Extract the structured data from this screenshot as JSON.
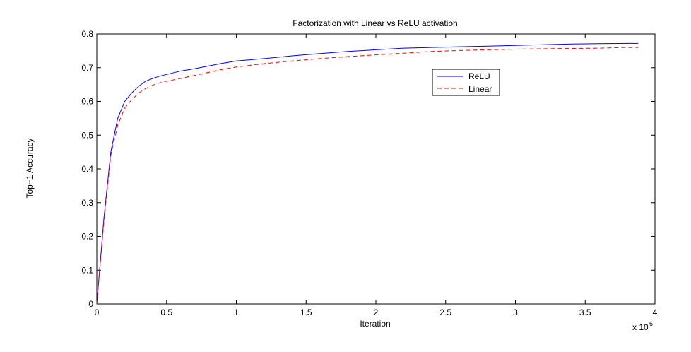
{
  "chart_data": {
    "type": "line",
    "title": "Factorization with Linear vs ReLU activation",
    "xlabel": "Iteration",
    "ylabel": "Top−1 Accuracy",
    "x_multiplier_label": "x 10",
    "x_multiplier_exponent": "6",
    "xlim": [
      0,
      4
    ],
    "ylim": [
      0,
      0.8
    ],
    "xticks": [
      0,
      0.5,
      1,
      1.5,
      2,
      2.5,
      3,
      3.5,
      4
    ],
    "xtick_labels": [
      "0",
      "0.5",
      "1",
      "1.5",
      "2",
      "2.5",
      "3",
      "3.5",
      "4"
    ],
    "yticks": [
      0,
      0.1,
      0.2,
      0.3,
      0.4,
      0.5,
      0.6,
      0.7,
      0.8
    ],
    "ytick_labels": [
      "0",
      "0.1",
      "0.2",
      "0.3",
      "0.4",
      "0.5",
      "0.6",
      "0.7",
      "0.8"
    ],
    "grid": false,
    "legend_position": "upper-right-inside",
    "series": [
      {
        "name": "ReLU",
        "color": "#0000ff",
        "dash": "solid",
        "x": [
          0,
          0.05,
          0.1,
          0.15,
          0.2,
          0.25,
          0.3,
          0.35,
          0.4,
          0.45,
          0.5,
          0.6,
          0.7,
          0.8,
          0.9,
          1.0,
          1.2,
          1.4,
          1.6,
          1.8,
          2.0,
          2.2,
          2.4,
          2.6,
          2.8,
          3.0,
          3.2,
          3.4,
          3.6,
          3.8,
          3.88
        ],
        "values": [
          0,
          0.25,
          0.45,
          0.55,
          0.6,
          0.625,
          0.645,
          0.66,
          0.668,
          0.675,
          0.68,
          0.69,
          0.697,
          0.705,
          0.713,
          0.72,
          0.727,
          0.735,
          0.742,
          0.748,
          0.753,
          0.758,
          0.76,
          0.762,
          0.764,
          0.766,
          0.768,
          0.77,
          0.771,
          0.772,
          0.772
        ]
      },
      {
        "name": "Linear",
        "color": "#ff0000",
        "dash": "dashed",
        "x": [
          0,
          0.05,
          0.1,
          0.15,
          0.2,
          0.25,
          0.3,
          0.35,
          0.4,
          0.45,
          0.5,
          0.6,
          0.7,
          0.8,
          0.9,
          1.0,
          1.2,
          1.4,
          1.6,
          1.8,
          2.0,
          2.2,
          2.4,
          2.6,
          2.8,
          3.0,
          3.2,
          3.4,
          3.6,
          3.8,
          3.88
        ],
        "values": [
          0,
          0.24,
          0.44,
          0.53,
          0.58,
          0.605,
          0.625,
          0.638,
          0.648,
          0.655,
          0.66,
          0.668,
          0.677,
          0.686,
          0.695,
          0.702,
          0.712,
          0.72,
          0.727,
          0.733,
          0.738,
          0.743,
          0.748,
          0.751,
          0.753,
          0.755,
          0.756,
          0.757,
          0.758,
          0.76,
          0.76
        ]
      }
    ]
  }
}
